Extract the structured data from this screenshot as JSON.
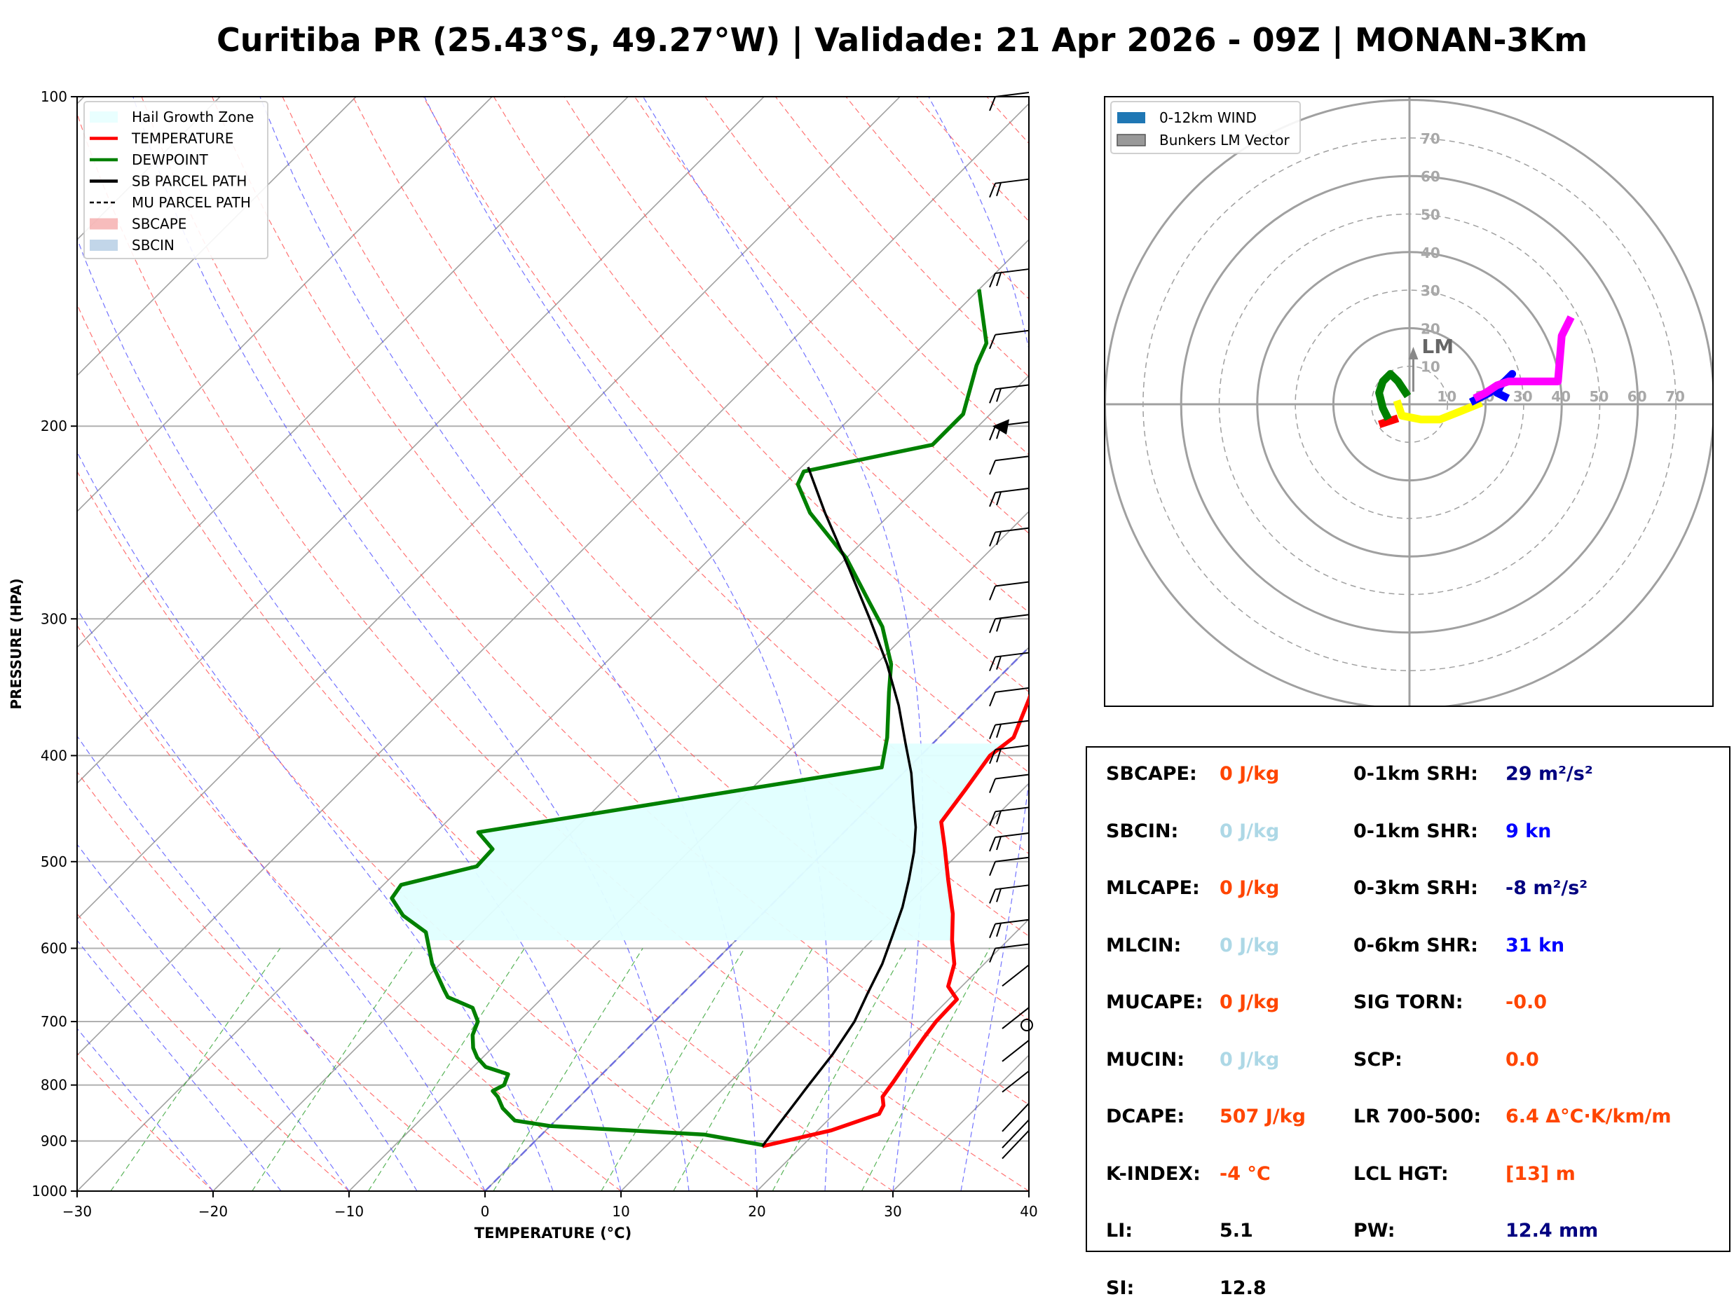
{
  "title": "Curitiba PR (25.43°S, 49.27°W) | Validade: 21 Apr 2026 - 09Z | MONAN-3Km",
  "chart_data": [
    {
      "type": "line",
      "chart": "skew-t",
      "xlabel": "TEMPERATURE (°C)",
      "ylabel": "PRESSURE (HPA)",
      "xlim": [
        -30,
        40
      ],
      "ylim": [
        1000,
        100
      ],
      "y_scale": "log",
      "xticks": [
        -30,
        -20,
        -10,
        0,
        10,
        20,
        30,
        40
      ],
      "xtick_labels": [
        "−30",
        "−20",
        "−10",
        "0",
        "10",
        "20",
        "30",
        "40"
      ],
      "yticks": [
        100,
        200,
        300,
        400,
        500,
        600,
        700,
        800,
        900,
        1000
      ],
      "grid": true,
      "legend_position": "top-left",
      "legend": [
        {
          "label": "Hail Growth Zone",
          "color": "#e0ffff",
          "kind": "patch"
        },
        {
          "label": "TEMPERATURE",
          "color": "#ff0000",
          "kind": "line"
        },
        {
          "label": "DEWPOINT",
          "color": "#008000",
          "kind": "line"
        },
        {
          "label": "SB PARCEL PATH",
          "color": "#000000",
          "kind": "line"
        },
        {
          "label": "MU PARCEL PATH",
          "color": "#000000",
          "kind": "dashed"
        },
        {
          "label": "SBCAPE",
          "color": "#f4a0a0",
          "kind": "patch"
        },
        {
          "label": "SBCIN",
          "color": "#a8c4e0",
          "kind": "patch"
        }
      ],
      "series": [
        {
          "name": "TEMPERATURE",
          "color": "#ff0000",
          "points": [
            [
              17.1,
              910
            ],
            [
              21.0,
              880
            ],
            [
              23.3,
              850
            ],
            [
              23.0,
              835
            ],
            [
              22.3,
              820
            ],
            [
              22.0,
              795
            ],
            [
              21.5,
              760
            ],
            [
              21.0,
              725
            ],
            [
              20.7,
              700
            ],
            [
              20.6,
              668
            ],
            [
              19.0,
              650
            ],
            [
              17.8,
              620
            ],
            [
              15.9,
              590
            ],
            [
              14.0,
              558
            ],
            [
              11.2,
              520
            ],
            [
              8.5,
              485
            ],
            [
              6.4,
              460
            ],
            [
              5.8,
              430
            ],
            [
              5.1,
              400
            ],
            [
              5.5,
              385
            ],
            [
              3.8,
              355
            ],
            [
              2.1,
              330
            ],
            [
              -1.0,
              300
            ],
            [
              -4.2,
              270
            ],
            [
              -5.6,
              255
            ],
            [
              -8.0,
              238
            ],
            [
              -10.8,
              215
            ],
            [
              -12.2,
              203
            ],
            [
              -15.4,
              193
            ],
            [
              -15.6,
              175
            ],
            [
              -17.4,
              155
            ],
            [
              -20.6,
              134
            ],
            [
              -23.2,
              128
            ],
            [
              -25.0,
              122
            ],
            [
              -26.7,
              110
            ],
            [
              -28.5,
              100
            ]
          ]
        },
        {
          "name": "DEWPOINT",
          "color": "#008000",
          "points": [
            [
              17.1,
              908
            ],
            [
              12.0,
              888
            ],
            [
              0.0,
              872
            ],
            [
              -3.0,
              862
            ],
            [
              -4.8,
              840
            ],
            [
              -6.0,
              820
            ],
            [
              -6.8,
              810
            ],
            [
              -6.4,
              800
            ],
            [
              -6.9,
              782
            ],
            [
              -9.1,
              770
            ],
            [
              -10.4,
              755
            ],
            [
              -11.4,
              740
            ],
            [
              -12.4,
              720
            ],
            [
              -13.0,
              700
            ],
            [
              -14.4,
              680
            ],
            [
              -17.0,
              665
            ],
            [
              -17.8,
              655
            ],
            [
              -20.6,
              620
            ],
            [
              -23.4,
              580
            ],
            [
              -26.3,
              560
            ],
            [
              -28.4,
              540
            ],
            [
              -28.7,
              525
            ],
            [
              -24.5,
              505
            ],
            [
              -24.6,
              487
            ],
            [
              -26.9,
              470
            ],
            [
              -2.0,
              410
            ],
            [
              -3.8,
              385
            ],
            [
              -7.0,
              350
            ],
            [
              -8.9,
              330
            ],
            [
              -12.3,
              305
            ],
            [
              -15.0,
              290
            ],
            [
              -20.0,
              264
            ],
            [
              -26.0,
              240
            ],
            [
              -29.0,
              226
            ],
            [
              -29.5,
              220
            ],
            [
              -22.0,
              208
            ],
            [
              -22.0,
              195
            ],
            [
              -24.6,
              176
            ],
            [
              -25.5,
              168
            ],
            [
              -30.0,
              150
            ],
            [
              -30.0,
              150
            ]
          ]
        },
        {
          "name": "SB PARCEL PATH",
          "color": "#000000",
          "points": [
            [
              17.1,
              910
            ],
            [
              16.7,
              870
            ],
            [
              16.0,
              800
            ],
            [
              15.5,
              750
            ],
            [
              14.7,
              700
            ],
            [
              13.6,
              660
            ],
            [
              12.5,
              620
            ],
            [
              11.2,
              585
            ],
            [
              9.8,
              550
            ],
            [
              8.3,
              520
            ],
            [
              6.6,
              490
            ],
            [
              4.9,
              465
            ],
            [
              2.8,
              440
            ],
            [
              0.6,
              415
            ],
            [
              -2.0,
              390
            ],
            [
              -5.3,
              360
            ],
            [
              -9.2,
              330
            ],
            [
              -13.8,
              300
            ],
            [
              -19.0,
              270
            ],
            [
              -24.9,
              240
            ],
            [
              -29.5,
              218
            ]
          ]
        }
      ],
      "hail_growth_zone": {
        "color": "#e0ffff",
        "top_hpa": 388,
        "bottom_hpa": 590
      },
      "wind_barbs_hpa": [
        100,
        120,
        145,
        165,
        185,
        200,
        215,
        230,
        250,
        280,
        300,
        325,
        350,
        375,
        395,
        420,
        450,
        475,
        500,
        530,
        570,
        600,
        640,
        700,
        750,
        800,
        850,
        880,
        900
      ]
    },
    {
      "type": "scatter",
      "chart": "hodograph",
      "rings": [
        10,
        20,
        30,
        40,
        50,
        60,
        70,
        80
      ],
      "ring_labels": [
        "10",
        "20",
        "30",
        "40",
        "50",
        "60",
        "70"
      ],
      "lm_label": "LM",
      "legend": [
        {
          "label": "0-12km WIND",
          "color": "#1f77b4"
        },
        {
          "label": "Bunkers LM Vector",
          "color": "#999999"
        }
      ],
      "legend_position": "top-left",
      "bunkers_lm": {
        "u": 1,
        "v": 14
      },
      "segments": [
        {
          "color": "#ff0000",
          "points": [
            [
              -7,
              -5
            ],
            [
              -4,
              -4
            ]
          ]
        },
        {
          "color": "#008000",
          "points": [
            [
              -6,
              -3
            ],
            [
              -7,
              -1
            ],
            [
              -8,
              3
            ],
            [
              -7,
              6
            ],
            [
              -5,
              8
            ],
            [
              -3,
              6
            ],
            [
              -1,
              3
            ]
          ]
        },
        {
          "color": "#ffff00",
          "points": [
            [
              -3,
              0
            ],
            [
              -2,
              -3
            ],
            [
              3,
              -4
            ],
            [
              8,
              -4
            ],
            [
              13,
              -2
            ],
            [
              18,
              0
            ]
          ]
        },
        {
          "color": "#0000ff",
          "points": [
            [
              17,
              1
            ],
            [
              21,
              3
            ],
            [
              25,
              6
            ],
            [
              27,
              8
            ],
            [
              24,
              5
            ],
            [
              23,
              3
            ],
            [
              25,
              2
            ]
          ]
        },
        {
          "color": "#ff00ff",
          "points": [
            [
              18,
              2
            ],
            [
              20,
              3
            ],
            [
              23,
              5
            ],
            [
              26,
              6
            ],
            [
              35,
              6
            ],
            [
              39,
              6
            ],
            [
              40,
              18
            ],
            [
              42,
              22
            ]
          ]
        }
      ]
    }
  ],
  "stats": {
    "left": [
      {
        "label": "SBCAPE:",
        "value": "0 J/kg",
        "color": "#ff4500"
      },
      {
        "label": "SBCIN:",
        "value": "0 J/kg",
        "color": "#add8e6"
      },
      {
        "label": "MLCAPE:",
        "value": "0 J/kg",
        "color": "#ff4500"
      },
      {
        "label": "MLCIN:",
        "value": "0 J/kg",
        "color": "#add8e6"
      },
      {
        "label": "MUCAPE:",
        "value": "0 J/kg",
        "color": "#ff4500"
      },
      {
        "label": "MUCIN:",
        "value": "0 J/kg",
        "color": "#add8e6"
      },
      {
        "label": "DCAPE:",
        "value": "507 J/kg",
        "color": "#ff4500"
      },
      {
        "label": "K-INDEX:",
        "value": "-4 °C",
        "color": "#ff4500"
      },
      {
        "label": "LI:",
        "value": "5.1",
        "color": "#000000"
      },
      {
        "label": "SI:",
        "value": "12.8",
        "color": "#000000"
      }
    ],
    "right": [
      {
        "label": "0-1km SRH:",
        "value": "29 m²/s²",
        "color": "#000080"
      },
      {
        "label": "0-1km SHR:",
        "value": "9 kn",
        "color": "#0000ff"
      },
      {
        "label": "0-3km SRH:",
        "value": "-8 m²/s²",
        "color": "#000080"
      },
      {
        "label": "0-6km SHR:",
        "value": "31 kn",
        "color": "#0000ff"
      },
      {
        "label": "SIG TORN:",
        "value": "-0.0",
        "color": "#ff4500"
      },
      {
        "label": "SCP:",
        "value": "0.0",
        "color": "#ff4500"
      },
      {
        "label": "LR 700-500:",
        "value": "6.4 Δ°C·K/km/m",
        "color": "#ff4500"
      },
      {
        "label": "LCL HGT:",
        "value": "[13] m",
        "color": "#ff4500"
      },
      {
        "label": "PW:",
        "value": "12.4 mm",
        "color": "#000080"
      }
    ]
  }
}
